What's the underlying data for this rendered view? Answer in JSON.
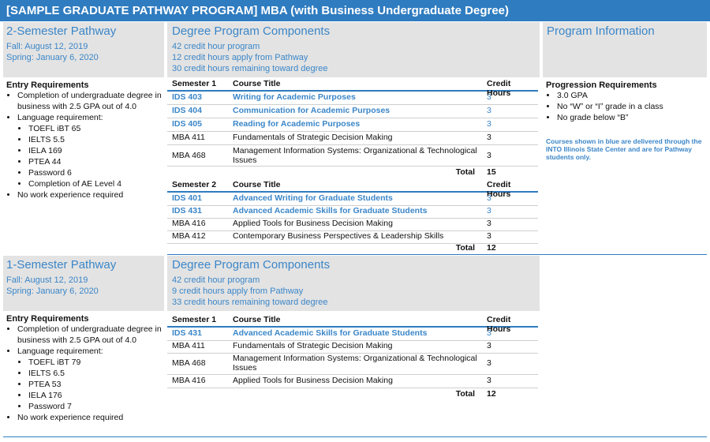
{
  "title": "[SAMPLE GRADUATE PATHWAY PROGRAM] MBA (with Business Undergraduate Degree)",
  "section1": {
    "pathway_title": "2-Semester Pathway",
    "dates": [
      "Fall: August 12, 2019",
      "Spring: January 6, 2020"
    ],
    "components_title": "Degree Program Components",
    "components": [
      "42 credit hour program",
      "12 credit hours apply from Pathway",
      "30 credit hours remaining toward degree"
    ],
    "program_info_title": "Program Information",
    "entry_title": "Entry Requirements",
    "entry": {
      "item1": "Completion of undergraduate degree in business with 2.5 GPA out of 4.0",
      "item2": "Language requirement:",
      "lang": [
        "TOEFL iBT 65",
        "IELTS 5.5",
        "IELA 169",
        "PTEA 44",
        "Password 6",
        "Completion of AE Level 4"
      ],
      "item3": "No work experience required"
    },
    "progression_title": "Progression Requirements",
    "progression": [
      "3.0 GPA",
      "No “W” or “I” grade in a class",
      "No grade below “B”"
    ],
    "note": "Courses shown in blue are delivered through the INTO Illinois State Center and are for Pathway students only.",
    "sem1": {
      "headers": [
        "Semester 1",
        "Course Title",
        "Credit Hours"
      ],
      "rows": [
        {
          "code": "IDS 403",
          "title": "Writing for Academic Purposes",
          "hours": "3",
          "blue": true
        },
        {
          "code": "IDS 404",
          "title": "Communication for Academic Purposes",
          "hours": "3",
          "blue": true
        },
        {
          "code": "IDS 405",
          "title": "Reading for Academic Purposes",
          "hours": "3",
          "blue": true
        },
        {
          "code": "MBA 411",
          "title": "Fundamentals of Strategic Decision Making",
          "hours": "3",
          "blue": false
        },
        {
          "code": "MBA 468",
          "title": "Management Information Systems: Organizational & Technological Issues",
          "hours": "3",
          "blue": false
        }
      ],
      "total_label": "Total",
      "total": "15"
    },
    "sem2": {
      "headers": [
        "Semester 2",
        "Course Title",
        "Credit Hours"
      ],
      "rows": [
        {
          "code": "IDS 401",
          "title": "Advanced Writing for Graduate Students",
          "hours": "3",
          "blue": true
        },
        {
          "code": "IDS 431",
          "title": "Advanced Academic Skills for Graduate Students",
          "hours": "3",
          "blue": true
        },
        {
          "code": "MBA 416",
          "title": "Applied Tools for Business Decision Making",
          "hours": "3",
          "blue": false
        },
        {
          "code": "MBA 412",
          "title": "Contemporary Business Perspectives & Leadership Skills",
          "hours": "3",
          "blue": false
        }
      ],
      "total_label": "Total",
      "total": "12"
    }
  },
  "section2": {
    "pathway_title": "1-Semester Pathway",
    "dates": [
      "Fall: August 12, 2019",
      "Spring: January 6, 2020"
    ],
    "components_title": "Degree Program Components",
    "components": [
      "42 credit hour program",
      "9 credit hours apply from Pathway",
      "33 credit hours remaining toward degree"
    ],
    "entry_title": "Entry Requirements",
    "entry": {
      "item1": "Completion of undergraduate degree in business with 2.5 GPA out of 4.0",
      "item2": "Language requirement:",
      "lang": [
        "TOEFL iBT 79",
        "IELTS 6.5",
        "PTEA 53",
        "IELA 176",
        "Password 7"
      ],
      "item3": "No work experience required"
    },
    "sem1": {
      "headers": [
        "Semester 1",
        "Course Title",
        "Credit Hours"
      ],
      "rows": [
        {
          "code": "IDS 431",
          "title": "Advanced Academic Skills for Graduate Students",
          "hours": "3",
          "blue": true
        },
        {
          "code": "MBA 411",
          "title": "Fundamentals of Strategic Decision Making",
          "hours": "3",
          "blue": false
        },
        {
          "code": "MBA 468",
          "title": "Management Information Systems: Organizational & Technological Issues",
          "hours": "3",
          "blue": false
        },
        {
          "code": "MBA 416",
          "title": "Applied Tools for Business Decision Making",
          "hours": "3",
          "blue": false
        }
      ],
      "total_label": "Total",
      "total": "12"
    }
  },
  "colors": {
    "accent": "#2f7cc0",
    "link_blue": "#3b86c8",
    "panel_gray": "#e3e3e3"
  }
}
